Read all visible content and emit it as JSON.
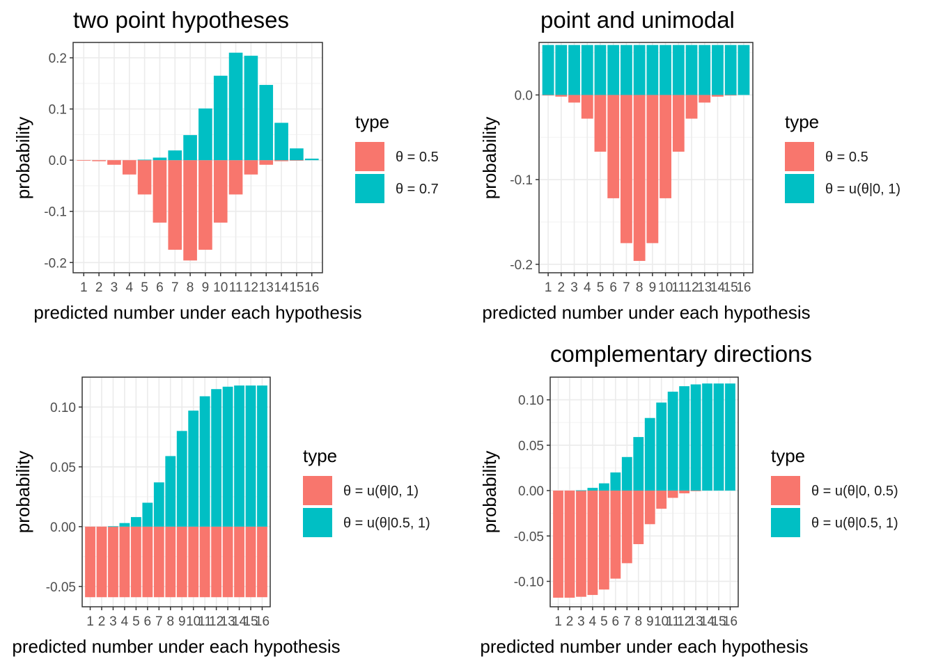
{
  "chart_data": [
    {
      "type": "bar",
      "title": "two point hypotheses",
      "xlabel": "predicted number under each hypothesis",
      "ylabel": "probability",
      "categories": [
        "1",
        "2",
        "3",
        "4",
        "5",
        "6",
        "7",
        "8",
        "9",
        "10",
        "11",
        "12",
        "13",
        "14",
        "15",
        "16"
      ],
      "ylim": [
        -0.22,
        0.23
      ],
      "yticks": [
        0.2,
        0.1,
        0.0,
        -0.1,
        -0.2
      ],
      "ytick_labels": [
        "0.2",
        "0.1",
        "0.0",
        "-0.1",
        "-0.2"
      ],
      "legend_title": "type",
      "series": [
        {
          "name": "θ = 0.5",
          "color": "#F8766D",
          "values": [
            -0.0002,
            -0.002,
            -0.009,
            -0.028,
            -0.067,
            -0.122,
            -0.175,
            -0.196,
            -0.175,
            -0.122,
            -0.067,
            -0.028,
            -0.009,
            -0.002,
            -0.0002,
            0
          ]
        },
        {
          "name": "θ = 0.7",
          "color": "#00BFC4",
          "values": [
            0,
            0,
            0,
            0,
            0.001,
            0.005,
            0.019,
            0.049,
            0.101,
            0.165,
            0.21,
            0.204,
            0.147,
            0.073,
            0.023,
            0.003
          ]
        }
      ]
    },
    {
      "type": "bar",
      "title": "point and unimodal",
      "xlabel": "predicted number under each hypothesis",
      "ylabel": "probability",
      "categories": [
        "1",
        "2",
        "3",
        "4",
        "5",
        "6",
        "7",
        "8",
        "9",
        "10",
        "11",
        "12",
        "13",
        "14",
        "15",
        "16"
      ],
      "ylim": [
        -0.21,
        0.062
      ],
      "yticks": [
        0.0,
        -0.1,
        -0.2
      ],
      "ytick_labels": [
        "0.0",
        "-0.1",
        "-0.2"
      ],
      "legend_title": "type",
      "series": [
        {
          "name": "θ = 0.5",
          "color": "#F8766D",
          "values": [
            -0.0002,
            -0.002,
            -0.009,
            -0.028,
            -0.067,
            -0.122,
            -0.175,
            -0.196,
            -0.175,
            -0.122,
            -0.067,
            -0.028,
            -0.009,
            -0.002,
            -0.0002,
            0
          ]
        },
        {
          "name": "θ = u(θ|0, 1)",
          "color": "#00BFC4",
          "values": [
            0.059,
            0.059,
            0.059,
            0.059,
            0.059,
            0.059,
            0.059,
            0.059,
            0.059,
            0.059,
            0.059,
            0.059,
            0.059,
            0.059,
            0.059,
            0.059
          ]
        }
      ]
    },
    {
      "type": "bar",
      "title": "",
      "xlabel": "predicted number under each hypothesis",
      "ylabel": "probability",
      "categories": [
        "1",
        "2",
        "3",
        "4",
        "5",
        "6",
        "7",
        "8",
        "9",
        "10",
        "11",
        "12",
        "13",
        "14",
        "15",
        "16"
      ],
      "ylim": [
        -0.067,
        0.125
      ],
      "yticks": [
        0.1,
        0.05,
        0.0,
        -0.05
      ],
      "ytick_labels": [
        "0.10",
        "0.05",
        "0.00",
        "-0.05"
      ],
      "legend_title": "type",
      "series": [
        {
          "name": "θ = u(θ|0, 1)",
          "color": "#F8766D",
          "values": [
            -0.059,
            -0.059,
            -0.059,
            -0.059,
            -0.059,
            -0.059,
            -0.059,
            -0.059,
            -0.059,
            -0.059,
            -0.059,
            -0.059,
            -0.059,
            -0.059,
            -0.059,
            -0.059
          ]
        },
        {
          "name": "θ = u(θ|0.5, 1)",
          "color": "#00BFC4",
          "values": [
            0,
            0,
            0.0003,
            0.003,
            0.008,
            0.02,
            0.037,
            0.059,
            0.08,
            0.097,
            0.109,
            0.115,
            0.117,
            0.118,
            0.118,
            0.118
          ]
        }
      ]
    },
    {
      "type": "bar",
      "title": "complementary directions",
      "xlabel": "predicted number under each hypothesis",
      "ylabel": "probability",
      "categories": [
        "1",
        "2",
        "3",
        "4",
        "5",
        "6",
        "7",
        "8",
        "9",
        "10",
        "11",
        "12",
        "13",
        "14",
        "15",
        "16"
      ],
      "ylim": [
        -0.128,
        0.125
      ],
      "yticks": [
        0.1,
        0.05,
        0.0,
        -0.05,
        -0.1
      ],
      "ytick_labels": [
        "0.10",
        "0.05",
        "0.00",
        "-0.05",
        "-0.10"
      ],
      "legend_title": "type",
      "series": [
        {
          "name": "θ = u(θ|0, 0.5)",
          "color": "#F8766D",
          "values": [
            -0.118,
            -0.118,
            -0.117,
            -0.115,
            -0.109,
            -0.097,
            -0.08,
            -0.059,
            -0.037,
            -0.02,
            -0.008,
            -0.003,
            -0.0003,
            0,
            0,
            0
          ]
        },
        {
          "name": "θ = u(θ|0.5, 1)",
          "color": "#00BFC4",
          "values": [
            0,
            0,
            0.0003,
            0.003,
            0.008,
            0.02,
            0.037,
            0.059,
            0.08,
            0.097,
            0.109,
            0.115,
            0.117,
            0.118,
            0.118,
            0.118
          ]
        }
      ]
    }
  ]
}
